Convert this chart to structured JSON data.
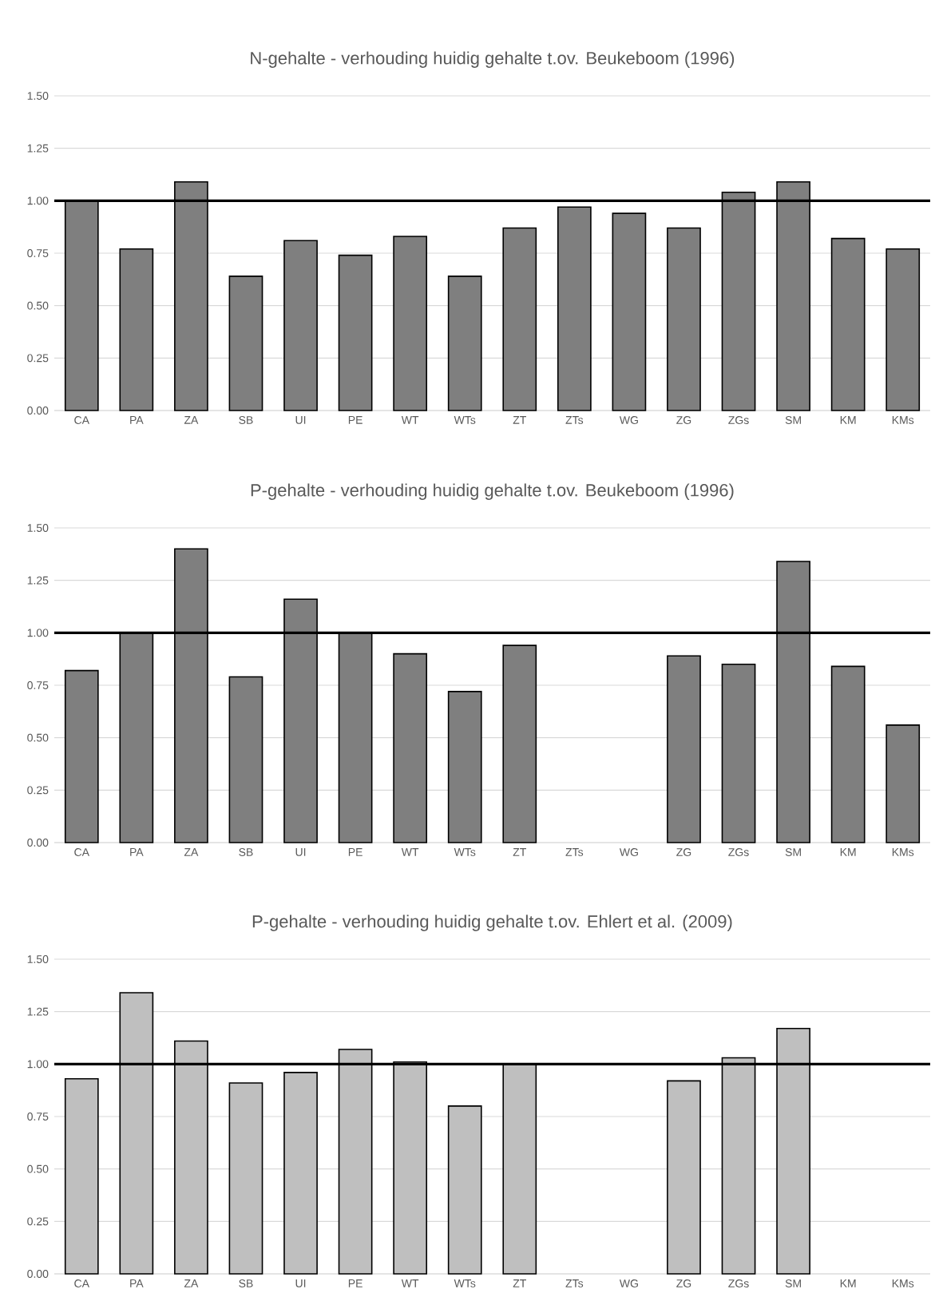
{
  "chart_data": [
    {
      "type": "bar",
      "title": "N-gehalte  - verhouding huidig gehalte t.ov. Beukeboom (1996)",
      "categories": [
        "CA",
        "PA",
        "ZA",
        "SB",
        "UI",
        "PE",
        "WT",
        "WTs",
        "ZT",
        "ZTs",
        "WG",
        "ZG",
        "ZGs",
        "SM",
        "KM",
        "KMs"
      ],
      "values": [
        1.0,
        0.77,
        1.09,
        0.64,
        0.81,
        0.74,
        0.83,
        0.64,
        0.87,
        0.97,
        0.94,
        0.87,
        1.04,
        1.09,
        0.82,
        0.77
      ],
      "color": "#7f7f7f",
      "ylim": [
        0,
        1.5
      ],
      "yticks": [
        {
          "value": 0,
          "label": "0.00"
        },
        {
          "value": 0.25,
          "label": "0.25"
        },
        {
          "value": 0.5,
          "label": "0.50"
        },
        {
          "value": 0.75,
          "label": "0.75"
        },
        {
          "value": 1,
          "label": "1.00"
        },
        {
          "value": 1.25,
          "label": "1.25"
        },
        {
          "value": 1.5,
          "label": "1.50"
        }
      ],
      "grid": "y",
      "ref_lines": [
        {
          "axis": "y",
          "value": 1,
          "color": "#000000"
        }
      ]
    },
    {
      "type": "bar",
      "title": "P-gehalte  - verhouding huidig gehalte t.ov. Beukeboom (1996)",
      "categories": [
        "CA",
        "PA",
        "ZA",
        "SB",
        "UI",
        "PE",
        "WT",
        "WTs",
        "ZT",
        "ZTs",
        "WG",
        "ZG",
        "ZGs",
        "SM",
        "KM",
        "KMs"
      ],
      "values": [
        0.82,
        1.0,
        1.4,
        0.79,
        1.16,
        1.0,
        0.9,
        0.72,
        0.94,
        null,
        null,
        0.89,
        0.85,
        1.34,
        0.84,
        0.56
      ],
      "color": "#7f7f7f",
      "ylim": [
        0,
        1.5
      ],
      "yticks": [
        {
          "value": 0,
          "label": "0.00"
        },
        {
          "value": 0.25,
          "label": "0.25"
        },
        {
          "value": 0.5,
          "label": "0.50"
        },
        {
          "value": 0.75,
          "label": "0.75"
        },
        {
          "value": 1,
          "label": "1.00"
        },
        {
          "value": 1.25,
          "label": "1.25"
        },
        {
          "value": 1.5,
          "label": "1.50"
        }
      ],
      "grid": "y",
      "ref_lines": [
        {
          "axis": "y",
          "value": 1,
          "color": "#000000"
        }
      ]
    },
    {
      "type": "bar",
      "title": "P-gehalte  - verhouding huidig gehalte t.ov. Ehlert et al. (2009)",
      "categories": [
        "CA",
        "PA",
        "ZA",
        "SB",
        "UI",
        "PE",
        "WT",
        "WTs",
        "ZT",
        "ZTs",
        "WG",
        "ZG",
        "ZGs",
        "SM",
        "KM",
        "KMs"
      ],
      "values": [
        0.93,
        1.34,
        1.11,
        0.91,
        0.96,
        1.07,
        1.01,
        0.8,
        1.0,
        null,
        null,
        0.92,
        1.03,
        1.17,
        null,
        null
      ],
      "color": "#bfbfbf",
      "ylim": [
        0,
        1.5
      ],
      "yticks": [
        {
          "value": 0,
          "label": "0.00"
        },
        {
          "value": 0.25,
          "label": "0.25"
        },
        {
          "value": 0.5,
          "label": "0.50"
        },
        {
          "value": 0.75,
          "label": "0.75"
        },
        {
          "value": 1,
          "label": "1.00"
        },
        {
          "value": 1.25,
          "label": "1.25"
        },
        {
          "value": 1.5,
          "label": "1.50"
        }
      ],
      "grid": "y",
      "ref_lines": [
        {
          "axis": "y",
          "value": 1,
          "color": "#000000"
        }
      ]
    }
  ]
}
